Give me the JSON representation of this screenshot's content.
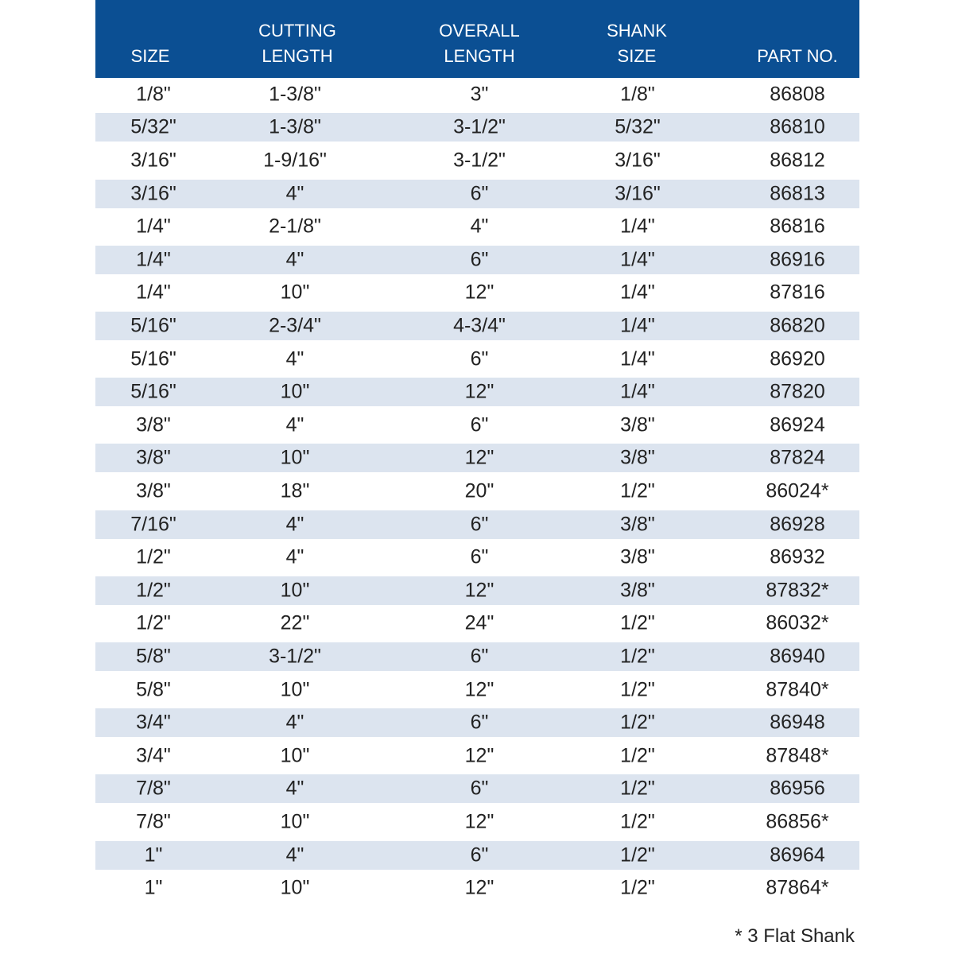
{
  "table": {
    "header": [
      [
        "SIZE"
      ],
      [
        "CUTTING",
        "LENGTH"
      ],
      [
        "OVERALL",
        "LENGTH"
      ],
      [
        "SHANK",
        "SIZE"
      ],
      [
        "PART NO."
      ]
    ],
    "rows": [
      [
        "1/8\"",
        "1-3/8\"",
        "3\"",
        "1/8\"",
        "86808"
      ],
      [
        "5/32\"",
        "1-3/8\"",
        "3-1/2\"",
        "5/32\"",
        "86810"
      ],
      [
        "3/16\"",
        "1-9/16\"",
        "3-1/2\"",
        "3/16\"",
        "86812"
      ],
      [
        "3/16\"",
        "4\"",
        "6\"",
        "3/16\"",
        "86813"
      ],
      [
        "1/4\"",
        "2-1/8\"",
        "4\"",
        "1/4\"",
        "86816"
      ],
      [
        "1/4\"",
        "4\"",
        "6\"",
        "1/4\"",
        "86916"
      ],
      [
        "1/4\"",
        "10\"",
        "12\"",
        "1/4\"",
        "87816"
      ],
      [
        "5/16\"",
        "2-3/4\"",
        "4-3/4\"",
        "1/4\"",
        "86820"
      ],
      [
        "5/16\"",
        "4\"",
        "6\"",
        "1/4\"",
        "86920"
      ],
      [
        "5/16\"",
        "10\"",
        "12\"",
        "1/4\"",
        "87820"
      ],
      [
        "3/8\"",
        "4\"",
        "6\"",
        "3/8\"",
        "86924"
      ],
      [
        "3/8\"",
        "10\"",
        "12\"",
        "3/8\"",
        "87824"
      ],
      [
        "3/8\"",
        "18\"",
        "20\"",
        "1/2\"",
        "86024*"
      ],
      [
        "7/16\"",
        "4\"",
        "6\"",
        "3/8\"",
        "86928"
      ],
      [
        "1/2\"",
        "4\"",
        "6\"",
        "3/8\"",
        "86932"
      ],
      [
        "1/2\"",
        "10\"",
        "12\"",
        "3/8\"",
        "87832*"
      ],
      [
        "1/2\"",
        "22\"",
        "24\"",
        "1/2\"",
        "86032*"
      ],
      [
        "5/8\"",
        "3-1/2\"",
        "6\"",
        "1/2\"",
        "86940"
      ],
      [
        "5/8\"",
        "10\"",
        "12\"",
        "1/2\"",
        "87840*"
      ],
      [
        "3/4\"",
        "4\"",
        "6\"",
        "1/2\"",
        "86948"
      ],
      [
        "3/4\"",
        "10\"",
        "12\"",
        "1/2\"",
        "87848*"
      ],
      [
        "7/8\"",
        "4\"",
        "6\"",
        "1/2\"",
        "86956"
      ],
      [
        "7/8\"",
        "10\"",
        "12\"",
        "1/2\"",
        "86856*"
      ],
      [
        "1\"",
        "4\"",
        "6\"",
        "1/2\"",
        "86964"
      ],
      [
        "1\"",
        "10\"",
        "12\"",
        "1/2\"",
        "87864*"
      ]
    ]
  },
  "footnote": "* 3 Flat Shank"
}
